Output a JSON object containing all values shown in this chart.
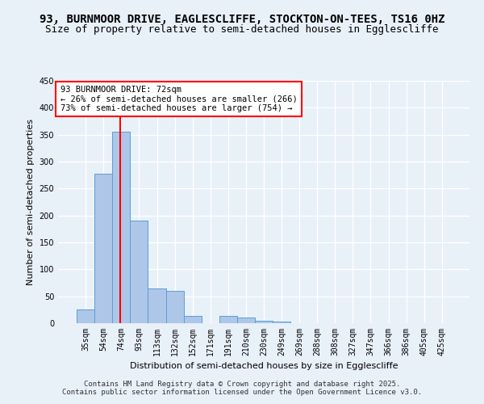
{
  "title": "93, BURNMOOR DRIVE, EAGLESCLIFFE, STOCKTON-ON-TEES, TS16 0HZ",
  "subtitle": "Size of property relative to semi-detached houses in Egglescliffe",
  "xlabel": "Distribution of semi-detached houses by size in Egglescliffe",
  "ylabel": "Number of semi-detached properties",
  "bar_labels": [
    "35sqm",
    "54sqm",
    "74sqm",
    "93sqm",
    "113sqm",
    "132sqm",
    "152sqm",
    "171sqm",
    "191sqm",
    "210sqm",
    "230sqm",
    "249sqm",
    "269sqm",
    "288sqm",
    "308sqm",
    "327sqm",
    "347sqm",
    "366sqm",
    "386sqm",
    "405sqm",
    "425sqm"
  ],
  "bar_values": [
    25,
    278,
    355,
    190,
    65,
    60,
    13,
    0,
    13,
    10,
    5,
    3,
    0,
    0,
    0,
    0,
    0,
    0,
    0,
    0,
    0
  ],
  "bar_color": "#aec6e8",
  "bar_edgecolor": "#5a9fd4",
  "background_color": "#e8f0f8",
  "grid_color": "#ffffff",
  "vline_color": "red",
  "annotation_title": "93 BURNMOOR DRIVE: 72sqm",
  "annotation_line1": "← 26% of semi-detached houses are smaller (266)",
  "annotation_line2": "73% of semi-detached houses are larger (754) →",
  "annotation_box_color": "white",
  "annotation_box_edgecolor": "red",
  "ylim": [
    0,
    450
  ],
  "yticks": [
    0,
    50,
    100,
    150,
    200,
    250,
    300,
    350,
    400,
    450
  ],
  "footer_line1": "Contains HM Land Registry data © Crown copyright and database right 2025.",
  "footer_line2": "Contains public sector information licensed under the Open Government Licence v3.0.",
  "title_fontsize": 10,
  "subtitle_fontsize": 9,
  "axis_label_fontsize": 8,
  "tick_fontsize": 7,
  "annotation_fontsize": 7.5,
  "footer_fontsize": 6.5
}
